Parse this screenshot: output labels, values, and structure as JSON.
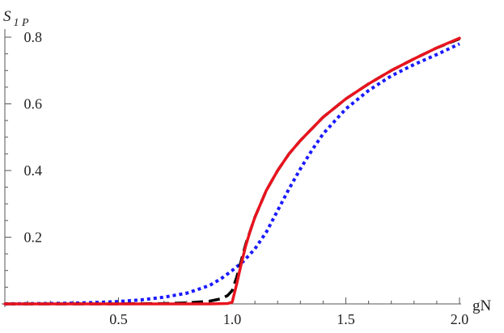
{
  "chart_data": {
    "type": "line",
    "xlabel": "gN",
    "ylabel_main": "S",
    "ylabel_sub": "1 P",
    "xlim": [
      0.0,
      2.0
    ],
    "ylim": [
      -0.005,
      0.8
    ],
    "x_ticks": [
      {
        "value": 0.5,
        "label": "0.5"
      },
      {
        "value": 1.0,
        "label": "1.0"
      },
      {
        "value": 1.5,
        "label": "1.5"
      },
      {
        "value": 2.0,
        "label": "2.0"
      }
    ],
    "y_ticks": [
      {
        "value": 0.2,
        "label": "0.2"
      },
      {
        "value": 0.4,
        "label": "0.4"
      },
      {
        "value": 0.6,
        "label": "0.6"
      },
      {
        "value": 0.8,
        "label": "0.8"
      }
    ],
    "series": [
      {
        "color": "#1a1aff",
        "style": "dotted",
        "points": [
          [
            0.0,
            0.0
          ],
          [
            0.2,
            0.001
          ],
          [
            0.3,
            0.002
          ],
          [
            0.4,
            0.004
          ],
          [
            0.5,
            0.007
          ],
          [
            0.6,
            0.012
          ],
          [
            0.7,
            0.02
          ],
          [
            0.8,
            0.032
          ],
          [
            0.9,
            0.055
          ],
          [
            0.95,
            0.075
          ],
          [
            1.0,
            0.1
          ],
          [
            1.05,
            0.128
          ],
          [
            1.1,
            0.165
          ],
          [
            1.15,
            0.215
          ],
          [
            1.2,
            0.28
          ],
          [
            1.25,
            0.345
          ],
          [
            1.3,
            0.405
          ],
          [
            1.35,
            0.46
          ],
          [
            1.4,
            0.51
          ],
          [
            1.5,
            0.585
          ],
          [
            1.6,
            0.64
          ],
          [
            1.7,
            0.684
          ],
          [
            1.8,
            0.718
          ],
          [
            1.9,
            0.748
          ],
          [
            2.0,
            0.78
          ]
        ]
      },
      {
        "color": "#000000",
        "style": "dashed",
        "points": [
          [
            0.0,
            0.0
          ],
          [
            0.5,
            0.0
          ],
          [
            0.7,
            0.001
          ],
          [
            0.8,
            0.003
          ],
          [
            0.9,
            0.008
          ],
          [
            0.95,
            0.015
          ],
          [
            0.98,
            0.025
          ],
          [
            1.0,
            0.04
          ],
          [
            1.02,
            0.08
          ],
          [
            1.04,
            0.13
          ],
          [
            1.06,
            0.18
          ],
          [
            1.1,
            0.26
          ],
          [
            1.15,
            0.34
          ],
          [
            1.2,
            0.4
          ],
          [
            1.25,
            0.45
          ],
          [
            1.3,
            0.49
          ],
          [
            1.4,
            0.56
          ],
          [
            1.5,
            0.615
          ],
          [
            1.6,
            0.66
          ],
          [
            1.7,
            0.7
          ],
          [
            1.8,
            0.735
          ],
          [
            1.9,
            0.768
          ],
          [
            2.0,
            0.795
          ]
        ]
      },
      {
        "color": "#e8141e",
        "style": "solid",
        "points": [
          [
            0.0,
            0.0
          ],
          [
            0.5,
            0.0
          ],
          [
            0.9,
            0.0
          ],
          [
            0.98,
            0.001
          ],
          [
            1.0,
            0.005
          ],
          [
            1.02,
            0.06
          ],
          [
            1.04,
            0.12
          ],
          [
            1.06,
            0.175
          ],
          [
            1.08,
            0.22
          ],
          [
            1.1,
            0.26
          ],
          [
            1.15,
            0.34
          ],
          [
            1.2,
            0.4
          ],
          [
            1.25,
            0.45
          ],
          [
            1.3,
            0.49
          ],
          [
            1.4,
            0.56
          ],
          [
            1.5,
            0.615
          ],
          [
            1.6,
            0.66
          ],
          [
            1.7,
            0.7
          ],
          [
            1.8,
            0.735
          ],
          [
            1.9,
            0.768
          ],
          [
            2.0,
            0.797
          ]
        ]
      }
    ]
  }
}
